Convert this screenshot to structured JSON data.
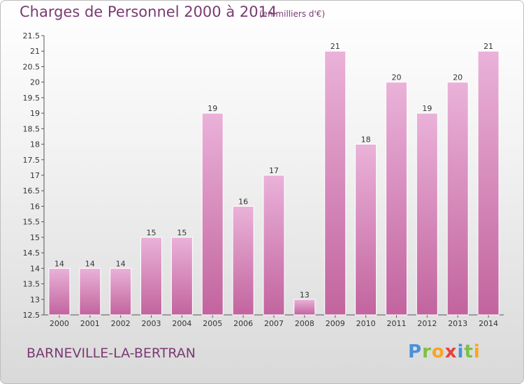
{
  "header": {
    "title": "Charges de Personnel 2000 à 2014",
    "subtitle": "(en milliers d'€)"
  },
  "footer": {
    "commune": "BARNEVILLE-LA-BERTRAN",
    "logo": [
      "P",
      "r",
      "o",
      "x",
      "i",
      "t",
      "i"
    ]
  },
  "colors": {
    "bar_light": "#eab2d9",
    "bar_dark": "#c2649e",
    "text": "#7a3a72"
  },
  "chart_data": {
    "type": "bar",
    "title": "Charges de Personnel 2000 à 2014",
    "categories": [
      "2000",
      "2001",
      "2002",
      "2003",
      "2004",
      "2005",
      "2006",
      "2007",
      "2008",
      "2009",
      "2010",
      "2011",
      "2012",
      "2013",
      "2014"
    ],
    "values": [
      14,
      14,
      14,
      15,
      15,
      19,
      16,
      17,
      13,
      21,
      18,
      20,
      19,
      20,
      21
    ],
    "ylim": [
      12.5,
      21.5
    ],
    "yticks": [
      12.5,
      13,
      13.5,
      14,
      14.5,
      15,
      15.5,
      16,
      16.5,
      17,
      17.5,
      18,
      18.5,
      19,
      19.5,
      20,
      20.5,
      21,
      21.5
    ],
    "grid": false,
    "legend": "none"
  }
}
